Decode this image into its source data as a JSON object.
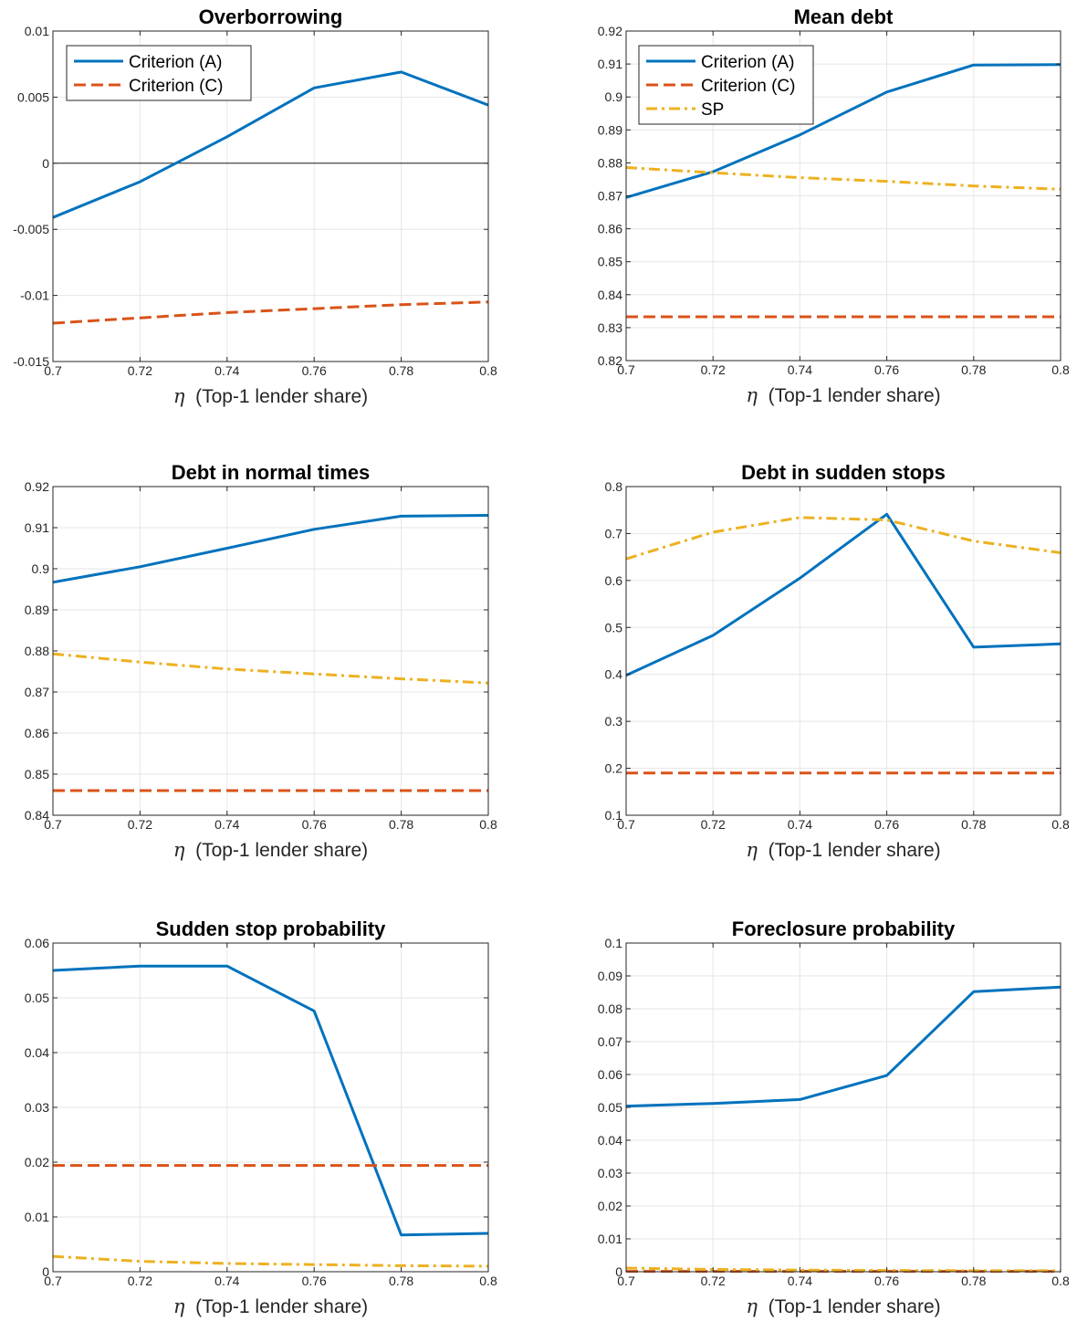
{
  "colors": {
    "criterion_a": "#0072BD",
    "criterion_c": "#D95319",
    "sp": "#EDB120",
    "grid": "#e6e6e6",
    "axis": "#262626",
    "zero_line": "#000000"
  },
  "chart_data": [
    {
      "type": "line",
      "title": "Overborrowing",
      "xlabel": {
        "symbol": "η",
        "text": "(Top-1 lender share)"
      },
      "ylabel": "",
      "x": [
        0.7,
        0.72,
        0.74,
        0.76,
        0.78,
        0.8
      ],
      "xlim": [
        0.7,
        0.8
      ],
      "xticks": [
        0.7,
        0.72,
        0.74,
        0.76,
        0.78,
        0.8
      ],
      "xtick_labels": [
        "0.7",
        "0.72",
        "0.74",
        "0.76",
        "0.78",
        "0.8"
      ],
      "ylim": [
        -0.015,
        0.01
      ],
      "yticks": [
        -0.015,
        -0.01,
        -0.005,
        0,
        0.005,
        0.01
      ],
      "ytick_labels": [
        "-0.015",
        "-0.01",
        "-0.005",
        "0",
        "0.005",
        "0.01"
      ],
      "grid": true,
      "zero_line": true,
      "legend": "top-left",
      "series": [
        {
          "name": "Criterion (A)",
          "style": "solid",
          "color": "#0072BD",
          "values": [
            -0.0041,
            -0.0014,
            0.002,
            0.0057,
            0.0069,
            0.0044
          ]
        },
        {
          "name": "Criterion (C)",
          "style": "dashed",
          "color": "#D95319",
          "values": [
            -0.0121,
            -0.0117,
            -0.0113,
            -0.011,
            -0.0107,
            -0.0105
          ]
        }
      ]
    },
    {
      "type": "line",
      "title": "Mean debt",
      "xlabel": {
        "symbol": "η",
        "text": "(Top-1 lender share)"
      },
      "ylabel": "",
      "x": [
        0.7,
        0.72,
        0.74,
        0.76,
        0.78,
        0.8
      ],
      "xlim": [
        0.7,
        0.8
      ],
      "xticks": [
        0.7,
        0.72,
        0.74,
        0.76,
        0.78,
        0.8
      ],
      "xtick_labels": [
        "0.7",
        "0.72",
        "0.74",
        "0.76",
        "0.78",
        "0.8"
      ],
      "ylim": [
        0.82,
        0.92
      ],
      "yticks": [
        0.82,
        0.83,
        0.84,
        0.85,
        0.86,
        0.87,
        0.88,
        0.89,
        0.9,
        0.91,
        0.92
      ],
      "ytick_labels": [
        "0.82",
        "0.83",
        "0.84",
        "0.85",
        "0.86",
        "0.87",
        "0.88",
        "0.89",
        "0.9",
        "0.91",
        "0.92"
      ],
      "grid": true,
      "zero_line": false,
      "legend": "top-left",
      "series": [
        {
          "name": "Criterion (A)",
          "style": "solid",
          "color": "#0072BD",
          "values": [
            0.8695,
            0.8773,
            0.8885,
            0.9015,
            0.9097,
            0.9098
          ]
        },
        {
          "name": "Criterion (C)",
          "style": "dashed",
          "color": "#D95319",
          "values": [
            0.8333,
            0.8333,
            0.8333,
            0.8333,
            0.8333,
            0.8333
          ]
        },
        {
          "name": "SP",
          "style": "dashdot",
          "color": "#EDB120",
          "values": [
            0.8786,
            0.877,
            0.8755,
            0.8744,
            0.873,
            0.872
          ]
        }
      ]
    },
    {
      "type": "line",
      "title": "Debt in normal times",
      "xlabel": {
        "symbol": "η",
        "text": "(Top-1 lender share)"
      },
      "ylabel": "",
      "x": [
        0.7,
        0.72,
        0.74,
        0.76,
        0.78,
        0.8
      ],
      "xlim": [
        0.7,
        0.8
      ],
      "xticks": [
        0.7,
        0.72,
        0.74,
        0.76,
        0.78,
        0.8
      ],
      "xtick_labels": [
        "0.7",
        "0.72",
        "0.74",
        "0.76",
        "0.78",
        "0.8"
      ],
      "ylim": [
        0.84,
        0.92
      ],
      "yticks": [
        0.84,
        0.85,
        0.86,
        0.87,
        0.88,
        0.89,
        0.9,
        0.91,
        0.92
      ],
      "ytick_labels": [
        "0.84",
        "0.85",
        "0.86",
        "0.87",
        "0.88",
        "0.89",
        "0.9",
        "0.91",
        "0.92"
      ],
      "grid": true,
      "zero_line": false,
      "legend": "none",
      "series": [
        {
          "name": "Criterion (A)",
          "style": "solid",
          "color": "#0072BD",
          "values": [
            0.8967,
            0.9005,
            0.905,
            0.9096,
            0.9128,
            0.913
          ]
        },
        {
          "name": "Criterion (C)",
          "style": "dashed",
          "color": "#D95319",
          "values": [
            0.846,
            0.846,
            0.846,
            0.846,
            0.846,
            0.846
          ]
        },
        {
          "name": "SP",
          "style": "dashdot",
          "color": "#EDB120",
          "values": [
            0.8793,
            0.8773,
            0.8756,
            0.8744,
            0.8732,
            0.8722
          ]
        }
      ]
    },
    {
      "type": "line",
      "title": "Debt in sudden stops",
      "xlabel": {
        "symbol": "η",
        "text": "(Top-1 lender share)"
      },
      "ylabel": "",
      "x": [
        0.7,
        0.72,
        0.74,
        0.76,
        0.78,
        0.8
      ],
      "xlim": [
        0.7,
        0.8
      ],
      "xticks": [
        0.7,
        0.72,
        0.74,
        0.76,
        0.78,
        0.8
      ],
      "xtick_labels": [
        "0.7",
        "0.72",
        "0.74",
        "0.76",
        "0.78",
        "0.8"
      ],
      "ylim": [
        0.1,
        0.8
      ],
      "yticks": [
        0.1,
        0.2,
        0.3,
        0.4,
        0.5,
        0.6,
        0.7,
        0.8
      ],
      "ytick_labels": [
        "0.1",
        "0.2",
        "0.3",
        "0.4",
        "0.5",
        "0.6",
        "0.7",
        "0.8"
      ],
      "grid": true,
      "zero_line": false,
      "legend": "none",
      "series": [
        {
          "name": "Criterion (A)",
          "style": "solid",
          "color": "#0072BD",
          "values": [
            0.398,
            0.483,
            0.605,
            0.741,
            0.458,
            0.465
          ]
        },
        {
          "name": "Criterion (C)",
          "style": "dashed",
          "color": "#D95319",
          "values": [
            0.19,
            0.19,
            0.19,
            0.19,
            0.19,
            0.19
          ]
        },
        {
          "name": "SP",
          "style": "dashdot",
          "color": "#EDB120",
          "values": [
            0.646,
            0.703,
            0.734,
            0.729,
            0.684,
            0.659
          ]
        }
      ]
    },
    {
      "type": "line",
      "title": "Sudden stop probability",
      "xlabel": {
        "symbol": "η",
        "text": "(Top-1 lender share)"
      },
      "ylabel": "",
      "x": [
        0.7,
        0.72,
        0.74,
        0.76,
        0.78,
        0.8
      ],
      "xlim": [
        0.7,
        0.8
      ],
      "xticks": [
        0.7,
        0.72,
        0.74,
        0.76,
        0.78,
        0.8
      ],
      "xtick_labels": [
        "0.7",
        "0.72",
        "0.74",
        "0.76",
        "0.78",
        "0.8"
      ],
      "ylim": [
        0,
        0.06
      ],
      "yticks": [
        0,
        0.01,
        0.02,
        0.03,
        0.04,
        0.05,
        0.06
      ],
      "ytick_labels": [
        "0",
        "0.01",
        "0.02",
        "0.03",
        "0.04",
        "0.05",
        "0.06"
      ],
      "grid": true,
      "zero_line": false,
      "legend": "none",
      "series": [
        {
          "name": "Criterion (A)",
          "style": "solid",
          "color": "#0072BD",
          "values": [
            0.055,
            0.0558,
            0.0558,
            0.0476,
            0.0067,
            0.007
          ]
        },
        {
          "name": "Criterion (C)",
          "style": "dashed",
          "color": "#D95319",
          "values": [
            0.0194,
            0.0194,
            0.0194,
            0.0194,
            0.0194,
            0.0194
          ]
        },
        {
          "name": "SP",
          "style": "dashdot",
          "color": "#EDB120",
          "values": [
            0.0028,
            0.0019,
            0.0015,
            0.0013,
            0.0011,
            0.001
          ]
        }
      ]
    },
    {
      "type": "line",
      "title": "Foreclosure probability",
      "xlabel": {
        "symbol": "η",
        "text": "(Top-1 lender share)"
      },
      "ylabel": "",
      "x": [
        0.7,
        0.72,
        0.74,
        0.76,
        0.78,
        0.8
      ],
      "xlim": [
        0.7,
        0.8
      ],
      "xticks": [
        0.7,
        0.72,
        0.74,
        0.76,
        0.78,
        0.8
      ],
      "xtick_labels": [
        "0.7",
        "0.72",
        "0.74",
        "0.76",
        "0.78",
        "0.8"
      ],
      "ylim": [
        0,
        0.1
      ],
      "yticks": [
        0,
        0.01,
        0.02,
        0.03,
        0.04,
        0.05,
        0.06,
        0.07,
        0.08,
        0.09,
        0.1
      ],
      "ytick_labels": [
        "0",
        "0.01",
        "0.02",
        "0.03",
        "0.04",
        "0.05",
        "0.06",
        "0.07",
        "0.08",
        "0.09",
        "0.1"
      ],
      "grid": true,
      "zero_line": false,
      "legend": "none",
      "series": [
        {
          "name": "Criterion (A)",
          "style": "solid",
          "color": "#0072BD",
          "values": [
            0.0504,
            0.0512,
            0.0524,
            0.0597,
            0.0852,
            0.0866
          ]
        },
        {
          "name": "Criterion (C)",
          "style": "dashed",
          "color": "#D95319",
          "values": [
            0.0001,
            0.0001,
            0.0001,
            0.0001,
            0.0001,
            0.0001
          ]
        },
        {
          "name": "SP",
          "style": "dashdot",
          "color": "#EDB120",
          "values": [
            0.0011,
            0.0007,
            0.0005,
            0.0004,
            0.0003,
            0.0003
          ]
        }
      ]
    }
  ]
}
